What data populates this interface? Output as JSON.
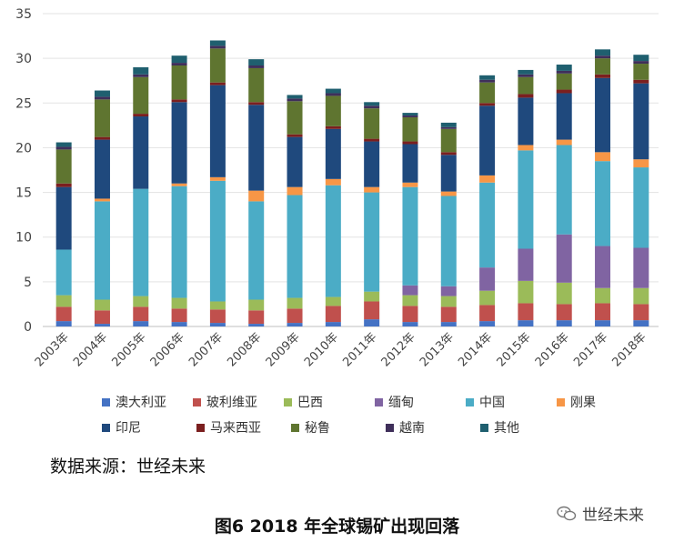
{
  "chart_data": {
    "type": "bar",
    "stacked": true,
    "ylim": [
      0,
      35
    ],
    "yticks": [
      0,
      5,
      10,
      15,
      20,
      25,
      30,
      35
    ],
    "grid": true,
    "legend_position": "bottom",
    "categories": [
      "2003年",
      "2004年",
      "2005年",
      "2006年",
      "2007年",
      "2008年",
      "2009年",
      "2010年",
      "2011年",
      "2012年",
      "2013年",
      "2014年",
      "2015年",
      "2016年",
      "2017年",
      "2018年"
    ],
    "series": [
      {
        "name": "澳大利亚",
        "color": "#4472C4",
        "values": [
          0.6,
          0.3,
          0.6,
          0.5,
          0.4,
          0.3,
          0.4,
          0.5,
          0.8,
          0.5,
          0.5,
          0.6,
          0.7,
          0.7,
          0.7,
          0.7
        ]
      },
      {
        "name": "玻利维亚",
        "color": "#C0504D",
        "values": [
          1.6,
          1.5,
          1.6,
          1.5,
          1.5,
          1.5,
          1.6,
          1.8,
          2.0,
          1.8,
          1.7,
          1.8,
          1.9,
          1.8,
          1.9,
          1.8
        ]
      },
      {
        "name": "巴西",
        "color": "#9BBB59",
        "values": [
          1.3,
          1.2,
          1.2,
          1.2,
          0.9,
          1.2,
          1.2,
          1.0,
          1.1,
          1.2,
          1.2,
          1.6,
          2.5,
          2.4,
          1.7,
          1.8
        ]
      },
      {
        "name": "缅甸",
        "color": "#8064A2",
        "values": [
          0,
          0,
          0,
          0,
          0,
          0,
          0,
          0,
          0,
          1.1,
          1.1,
          2.6,
          3.6,
          5.4,
          4.7,
          4.5
        ]
      },
      {
        "name": "中国",
        "color": "#4BACC6",
        "values": [
          5.1,
          11.0,
          12.0,
          12.5,
          13.5,
          11.0,
          11.5,
          12.5,
          11.1,
          11.0,
          10.1,
          9.5,
          11.0,
          10.0,
          9.5,
          9.0
        ]
      },
      {
        "name": "刚果",
        "color": "#F79646",
        "values": [
          0,
          0.3,
          0,
          0.3,
          0.4,
          1.2,
          0.9,
          0.7,
          0.6,
          0.5,
          0.5,
          0.8,
          0.6,
          0.6,
          1.0,
          0.9
        ]
      },
      {
        "name": "印尼",
        "color": "#1F497D",
        "values": [
          7.0,
          6.6,
          8.1,
          9.1,
          10.3,
          9.6,
          5.6,
          5.6,
          5.1,
          4.3,
          4.1,
          7.8,
          5.3,
          5.2,
          8.3,
          8.5
        ]
      },
      {
        "name": "马来西亚",
        "color": "#7B1F1F",
        "values": [
          0.4,
          0.3,
          0.3,
          0.3,
          0.3,
          0.3,
          0.3,
          0.3,
          0.3,
          0.3,
          0.3,
          0.3,
          0.4,
          0.4,
          0.4,
          0.4
        ]
      },
      {
        "name": "秘鲁",
        "color": "#5F7530",
        "values": [
          3.8,
          4.2,
          4.1,
          3.8,
          3.8,
          3.8,
          3.7,
          3.4,
          3.4,
          2.7,
          2.6,
          2.3,
          1.9,
          1.8,
          1.8,
          1.8
        ]
      },
      {
        "name": "越南",
        "color": "#3F2F5A",
        "values": [
          0.3,
          0.3,
          0.3,
          0.3,
          0.3,
          0.3,
          0.3,
          0.3,
          0.3,
          0.2,
          0.2,
          0.3,
          0.3,
          0.3,
          0.3,
          0.3
        ]
      },
      {
        "name": "其他",
        "color": "#1F5F6F",
        "values": [
          0.5,
          0.7,
          0.8,
          0.8,
          0.6,
          0.7,
          0.4,
          0.5,
          0.4,
          0.3,
          0.5,
          0.5,
          0.5,
          0.7,
          0.7,
          0.7
        ]
      }
    ]
  },
  "source_text": "数据来源：世经未来",
  "caption": "图6 2018 年全球锡矿出现回落",
  "watermark": {
    "icon": "wechat-icon",
    "text": "世经未来"
  }
}
